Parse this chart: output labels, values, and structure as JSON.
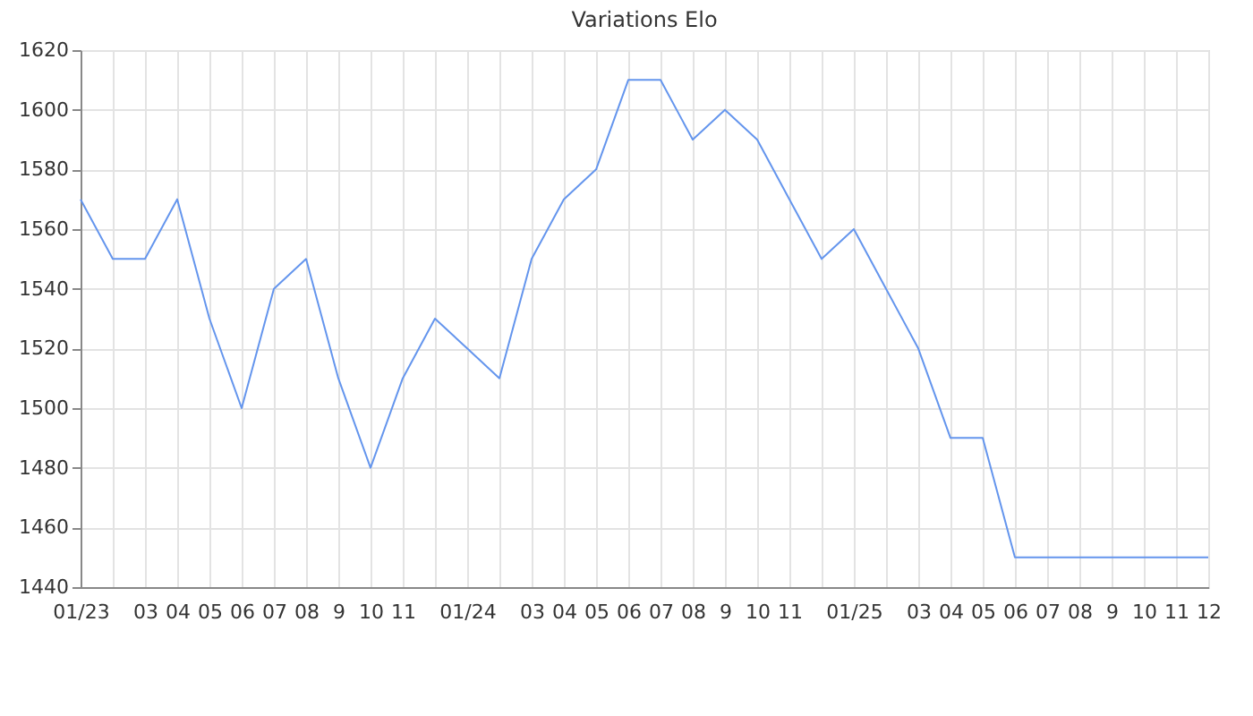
{
  "chart_data": {
    "type": "line",
    "title": "Variations Elo",
    "categories": [
      "01/23",
      null,
      "03",
      "04",
      "05",
      "06",
      "07",
      "08",
      "9",
      "10",
      "11",
      null,
      "01/24",
      null,
      "03",
      "04",
      "05",
      "06",
      "07",
      "08",
      "9",
      "10",
      "11",
      null,
      "01/25",
      null,
      "03",
      "04",
      "05",
      "06",
      "07",
      "08",
      "9",
      "10",
      "11",
      "12"
    ],
    "series": [
      {
        "color": "#6495ed",
        "values": [
          1570,
          1550,
          1550,
          1570,
          1530,
          1500,
          1540,
          1550,
          1510,
          1480,
          1510,
          1530,
          1520,
          1510,
          1550,
          1570,
          1580,
          1610,
          1610,
          1590,
          1600,
          1590,
          1570,
          1550,
          1560,
          1540,
          1520,
          1490,
          1490,
          1450,
          1450,
          1450,
          1450,
          1450,
          1450,
          1450
        ]
      }
    ],
    "ylim": [
      1440,
      1620
    ],
    "yticks": [
      1440,
      1460,
      1480,
      1500,
      1520,
      1540,
      1560,
      1580,
      1600,
      1620
    ],
    "grid": true,
    "marker": "none",
    "line_style": "solid"
  }
}
